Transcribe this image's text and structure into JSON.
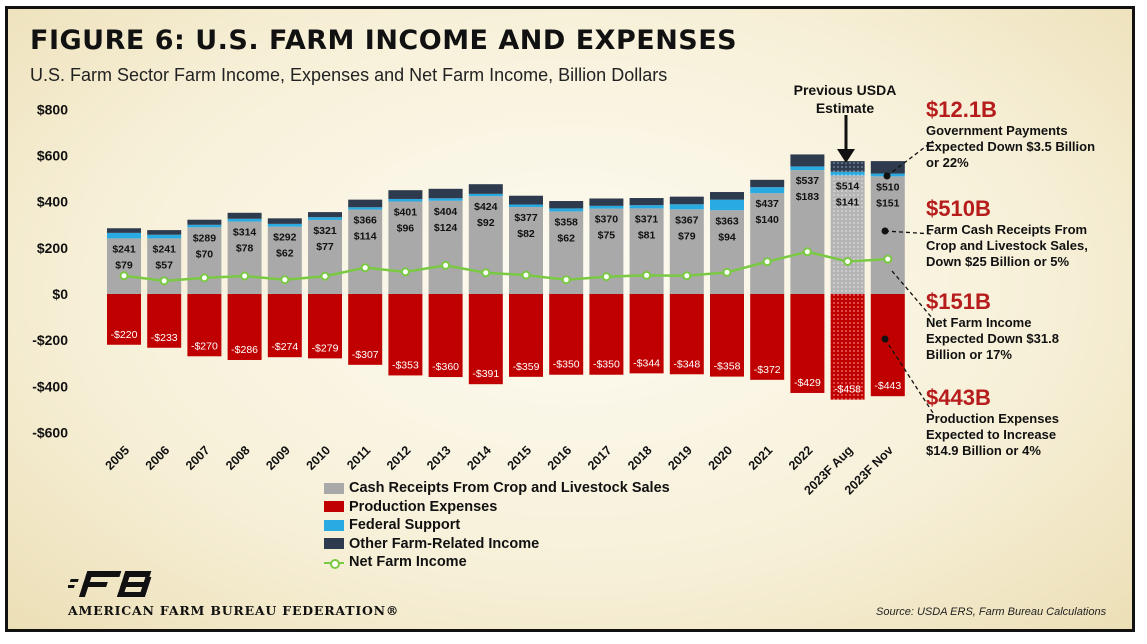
{
  "page": {
    "title": "FIGURE 6: U.S. FARM INCOME AND EXPENSES",
    "subtitle": "U.S. Farm Sector Farm Income, Expenses and Net Farm Income, Billion Dollars",
    "source": "Source: USDA ERS, Farm Bureau Calculations",
    "logo_text": "AMERICAN FARM BUREAU FEDERATION®",
    "previous_estimate_label": "Previous USDA Estimate"
  },
  "colors": {
    "cash": "#a9a9a9",
    "expenses": "#c00000",
    "federal": "#29abe2",
    "other": "#2e3a4d",
    "net": "#7ac943",
    "accent": "#b71c1c"
  },
  "chart_data": {
    "type": "bar",
    "title": "FIGURE 6: U.S. FARM INCOME AND EXPENSES",
    "ylabel": "Billion Dollars",
    "ylim": [
      -600,
      800
    ],
    "yticks": [
      800,
      600,
      400,
      200,
      0,
      -200,
      -400,
      -600
    ],
    "ytick_labels": [
      "$800",
      "$600",
      "$400",
      "$200",
      "$0",
      "-$200",
      "-$400",
      "-$600"
    ],
    "categories": [
      "2005",
      "2006",
      "2007",
      "2008",
      "2009",
      "2010",
      "2011",
      "2012",
      "2013",
      "2014",
      "2015",
      "2016",
      "2017",
      "2018",
      "2019",
      "2020",
      "2021",
      "2022",
      "2023F Aug",
      "2023F Nov"
    ],
    "series": [
      {
        "name": "Cash Receipts From Crop and Livestock Sales",
        "values": [
          241,
          241,
          289,
          314,
          292,
          321,
          366,
          401,
          404,
          424,
          377,
          358,
          370,
          371,
          367,
          363,
          437,
          537,
          514,
          510
        ]
      },
      {
        "name": "Production Expenses",
        "values": [
          -220,
          -233,
          -270,
          -286,
          -274,
          -279,
          -307,
          -353,
          -360,
          -391,
          -359,
          -350,
          -350,
          -344,
          -348,
          -358,
          -372,
          -429,
          -458,
          -443
        ]
      },
      {
        "name": "Federal Support",
        "values": [
          24,
          16,
          11,
          12,
          12,
          12,
          10,
          11,
          11,
          10,
          11,
          13,
          12,
          14,
          22,
          46,
          26,
          16,
          16,
          12
        ]
      },
      {
        "name": "Other Farm-Related Income",
        "values": [
          20,
          20,
          22,
          26,
          24,
          22,
          33,
          38,
          41,
          42,
          38,
          32,
          32,
          31,
          33,
          33,
          32,
          52,
          46,
          54
        ]
      },
      {
        "name": "Net Farm Income",
        "values": [
          79,
          57,
          70,
          78,
          62,
          77,
          114,
          96,
          124,
          92,
          82,
          62,
          75,
          81,
          79,
          94,
          140,
          183,
          141,
          151
        ]
      }
    ],
    "legend": [
      "Cash Receipts From Crop and Livestock Sales",
      "Production Expenses",
      "Federal Support",
      "Other Farm-Related Income",
      "Net Farm Income"
    ]
  },
  "annotations": [
    {
      "value": "$12.1B",
      "text": "Government Payments Expected Down $3.5 Billion or 22%"
    },
    {
      "value": "$510B",
      "text": "Farm Cash Receipts From Crop and Livestock Sales, Down $25 Billion or 5%"
    },
    {
      "value": "$151B",
      "text": "Net Farm Income Expected Down $31.8 Billion or 17%"
    },
    {
      "value": "$443B",
      "text": "Production Expenses Expected to Increase $14.9 Billion or 4%"
    }
  ]
}
